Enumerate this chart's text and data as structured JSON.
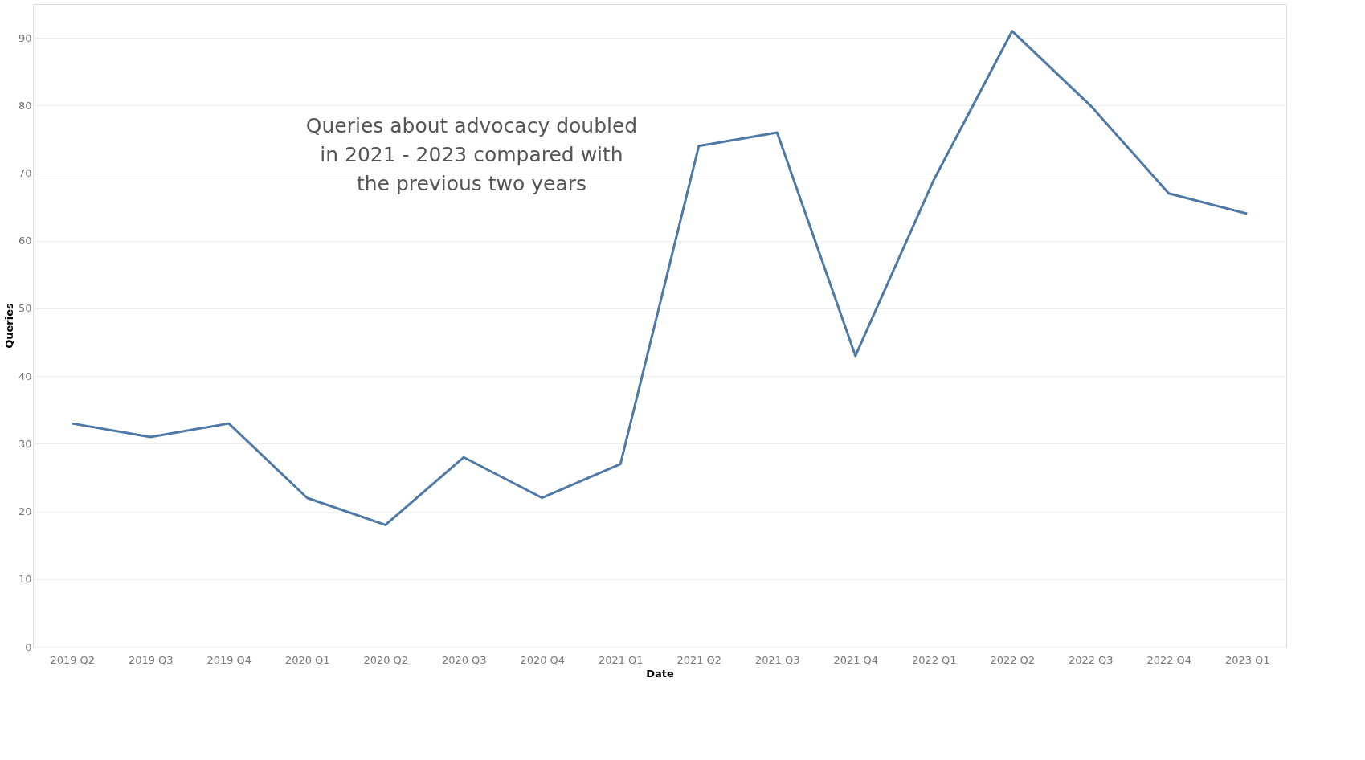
{
  "chart_data": {
    "type": "line",
    "xlabel": "Date",
    "ylabel": "Queries",
    "categories": [
      "2019 Q2",
      "2019 Q3",
      "2019 Q4",
      "2020 Q1",
      "2020 Q2",
      "2020 Q3",
      "2020 Q4",
      "2021 Q1",
      "2021 Q2",
      "2021 Q3",
      "2021 Q4",
      "2022 Q1",
      "2022 Q2",
      "2022 Q3",
      "2022 Q4",
      "2023 Q1"
    ],
    "series": [
      {
        "color": "#4e79a7",
        "values": [
          33,
          31,
          33,
          22,
          18,
          28,
          22,
          27,
          74,
          76,
          43,
          69,
          91,
          80,
          67,
          64
        ]
      }
    ],
    "ylim": [
      0,
      95
    ],
    "yticks": [
      0,
      10,
      20,
      30,
      40,
      50,
      60,
      70,
      80,
      90
    ],
    "grid": "y",
    "annotations": [
      "Queries about advocacy doubled\nin 2021 - 2023 compared with\nthe previous two years"
    ]
  }
}
